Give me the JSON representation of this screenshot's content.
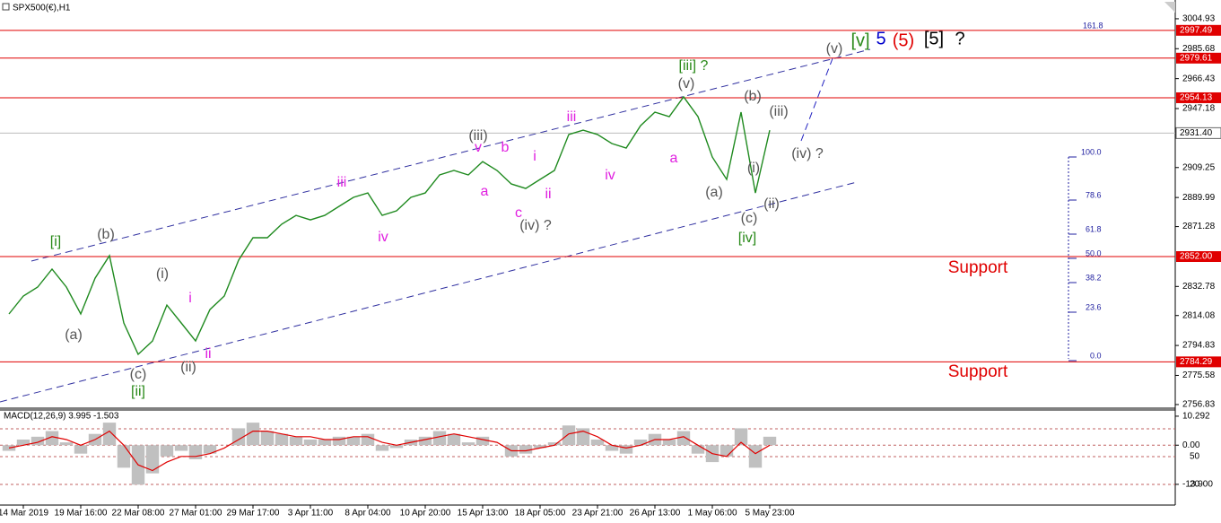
{
  "header": {
    "title": "SPX500(€),H1"
  },
  "chart_data": [
    {
      "type": "line",
      "series": [
        {
          "name": "SPX500",
          "color": "#1f8a1f",
          "values": [
            2815.1,
            2826.6,
            2832.4,
            2843.9,
            2832.4,
            2815.1,
            2838.1,
            2852.6,
            2809.3,
            2789.1,
            2797.7,
            2820.8,
            2809.3,
            2797.7,
            2817.9,
            2826.6,
            2849.7,
            2864.1,
            2864.1,
            2872.8,
            2878.5,
            2875.6,
            2878.5,
            2884.3,
            2890.1,
            2892.9,
            2878.5,
            2881.4,
            2890.1,
            2892.9,
            2904.5,
            2907.4,
            2904.5,
            2913.1,
            2907.4,
            2898.7,
            2895.8,
            2901.6,
            2907.4,
            2930.5,
            2933.3,
            2930.5,
            2924.7,
            2921.8,
            2936.2,
            2944.9,
            2942.0,
            2954.7,
            2942.0,
            2916.0,
            2901.6,
            2944.9,
            2892.9,
            2933.3
          ]
        }
      ],
      "xlim": [
        -0.625,
        81.25
      ],
      "xticks": [
        {
          "value": 1,
          "label": "14 Mar 2019"
        },
        {
          "value": 5,
          "label": "19 Mar 16:00"
        },
        {
          "value": 9,
          "label": "22 Mar 08:00"
        },
        {
          "value": 13,
          "label": "27 Mar 01:00"
        },
        {
          "value": 17,
          "label": "29 Mar 17:00"
        },
        {
          "value": 21,
          "label": "3 Apr 11:00"
        },
        {
          "value": 25,
          "label": "8 Apr 04:00"
        },
        {
          "value": 29,
          "label": "10 Apr 20:00"
        },
        {
          "value": 33,
          "label": "15 Apr 13:00"
        },
        {
          "value": 37,
          "label": "18 Apr 05:00"
        },
        {
          "value": 41,
          "label": "23 Apr 21:00"
        },
        {
          "value": 45,
          "label": "26 Apr 13:00"
        },
        {
          "value": 49,
          "label": "1 May 06:00"
        },
        {
          "value": 53,
          "label": "5 May 23:00"
        }
      ],
      "ylim": [
        2754.5,
        3017.0
      ],
      "yticks": [
        3004.93,
        2985.68,
        2966.43,
        2947.18,
        2909.25,
        2889.99,
        2871.28,
        2832.78,
        2814.08,
        2794.83,
        2775.58,
        2756.83
      ],
      "levels": [
        2997.49,
        2979.61,
        2954.13,
        {
          "value": 2852,
          "label": "2852.00"
        },
        2784.29
      ],
      "level_color": "#e00000",
      "current_price": {
        "value": 2931.4,
        "label": "2931.40"
      },
      "fibonacci": [
        "161.8",
        "100.0",
        "78.6",
        "61.8",
        "50.0",
        "38.2",
        "23.6",
        "0.0"
      ],
      "annotations": [
        {
          "text": "[i]",
          "color": "#2a8a1a"
        },
        {
          "text": "(b)",
          "color": "#555555"
        },
        {
          "text": "(a)",
          "color": "#555555"
        },
        {
          "text": "(i)",
          "color": "#555555"
        },
        {
          "text": "i",
          "color": "#e020e0"
        },
        {
          "text": "(c)",
          "color": "#555555"
        },
        {
          "text": "[ii]",
          "color": "#2a8a1a"
        },
        {
          "text": "(ii)",
          "color": "#555555"
        },
        {
          "text": "ii",
          "color": "#e020e0"
        },
        {
          "text": "iii",
          "color": "#e020e0"
        },
        {
          "text": "iv",
          "color": "#e020e0"
        },
        {
          "text": "(iii)",
          "color": "#555555"
        },
        {
          "text": "v",
          "color": "#e020e0"
        },
        {
          "text": "b",
          "color": "#e020e0"
        },
        {
          "text": "a",
          "color": "#e020e0"
        },
        {
          "text": "i",
          "color": "#e020e0"
        },
        {
          "text": "ii",
          "color": "#e020e0"
        },
        {
          "text": "c",
          "color": "#e020e0"
        },
        {
          "text": "(iv) ?",
          "color": "#555555"
        },
        {
          "text": "iii",
          "color": "#e020e0"
        },
        {
          "text": "iv",
          "color": "#e020e0"
        },
        {
          "text": "a",
          "color": "#e020e0"
        },
        {
          "text": "[iii] ?",
          "color": "#2a8a1a"
        },
        {
          "text": "(v)",
          "color": "#555555"
        },
        {
          "text": "(b)",
          "color": "#555555"
        },
        {
          "text": "(iii)",
          "color": "#555555"
        },
        {
          "text": "(a)",
          "color": "#555555"
        },
        {
          "text": "(i)",
          "color": "#555555"
        },
        {
          "text": "(c)",
          "color": "#555555"
        },
        {
          "text": "(ii)",
          "color": "#555555"
        },
        {
          "text": "[iv]",
          "color": "#2a8a1a"
        },
        {
          "text": "(iv) ?",
          "color": "#555555"
        },
        {
          "text": "(v)",
          "color": "#555555"
        },
        {
          "text": "[v]",
          "color": "#2a8a1a"
        },
        {
          "text": "5",
          "color": "#0000cc"
        },
        {
          "text": "(5)",
          "color": "#e00000"
        },
        {
          "text": "[5]",
          "color": "#000000"
        },
        {
          "text": "?",
          "color": "#000000"
        },
        {
          "text": "Support",
          "color": "#e00000"
        },
        {
          "text": "Support",
          "color": "#e00000"
        }
      ]
    },
    {
      "type": "combo",
      "title": "MACD(12,26,9) 3.995 -1.503",
      "series": [
        {
          "name": "MACD",
          "type": "bar",
          "color": "#c0c0c0",
          "values": [
            -2,
            2,
            3,
            5,
            1,
            -3,
            4,
            8,
            -8,
            -14,
            -10,
            -4,
            -2,
            -5,
            -3,
            0,
            6,
            8,
            5,
            4,
            3,
            2,
            2,
            3,
            3,
            4,
            -2,
            -1,
            2,
            3,
            5,
            4,
            1,
            3,
            0,
            -4,
            -3,
            -1,
            1,
            7,
            6,
            2,
            -2,
            -3,
            2,
            4,
            2,
            5,
            -3,
            -6,
            -4,
            6,
            -8,
            3
          ]
        },
        {
          "name": "Signal",
          "type": "line",
          "color": "#e00000",
          "values": [
            -1,
            0,
            1,
            3,
            2,
            0,
            2,
            5,
            0,
            -7,
            -9,
            -6,
            -4,
            -4,
            -3,
            -1,
            2,
            5,
            5,
            4,
            3,
            3,
            2,
            2,
            3,
            3,
            1,
            0,
            1,
            2,
            3,
            4,
            3,
            2,
            1,
            -2,
            -2,
            -1,
            0,
            4,
            5,
            3,
            0,
            -1,
            0,
            2,
            2,
            3,
            0,
            -3,
            -4,
            1,
            -3,
            0
          ]
        }
      ],
      "ylim": [
        -20.3,
        12.5
      ],
      "yticks": [
        10.292,
        {
          "value": 0,
          "label": "0.00"
        },
        {
          "value": -13.9,
          "label": "-13.900"
        }
      ],
      "overlay_labels": [
        "50",
        "20"
      ]
    }
  ]
}
